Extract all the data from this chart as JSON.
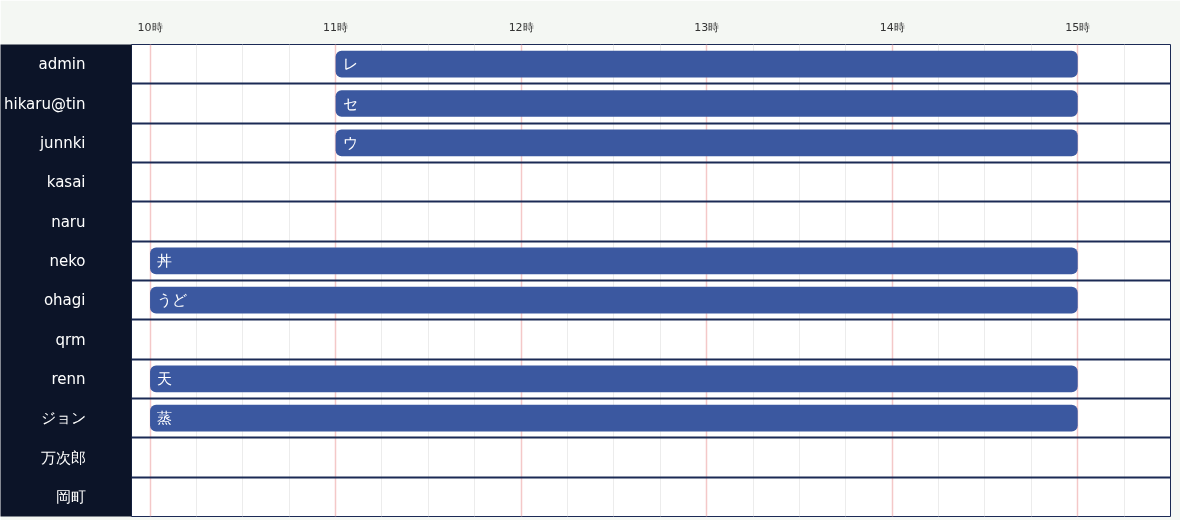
{
  "chart_data": {
    "type": "bar",
    "orientation": "horizontal",
    "categories": [
      "admin",
      "hikaru@tin",
      "junnki",
      "kasai",
      "naru",
      "neko",
      "ohagi",
      "qrm",
      "renn",
      "ジョン",
      "万次郎",
      "岡町"
    ],
    "base": [
      11,
      11,
      11,
      null,
      null,
      10,
      10,
      null,
      10,
      10,
      null,
      null
    ],
    "values": [
      4,
      4,
      4,
      null,
      null,
      5,
      5,
      null,
      5,
      5,
      null,
      null
    ],
    "color": "#3b58a0",
    "xlim": [
      9.9,
      15.5
    ],
    "xticks": [
      {
        "value": 10,
        "label": "10時"
      },
      {
        "value": 11,
        "label": "11時"
      },
      {
        "value": 12,
        "label": "12時"
      },
      {
        "value": 13,
        "label": "13時"
      },
      {
        "value": 14,
        "label": "14時"
      },
      {
        "value": 15,
        "label": "15時"
      }
    ],
    "value_labels": [
      "レ",
      "セ",
      "ウ",
      null,
      null,
      "丼",
      "うど",
      null,
      "天",
      "蒸",
      null,
      null
    ],
    "grid": true
  }
}
